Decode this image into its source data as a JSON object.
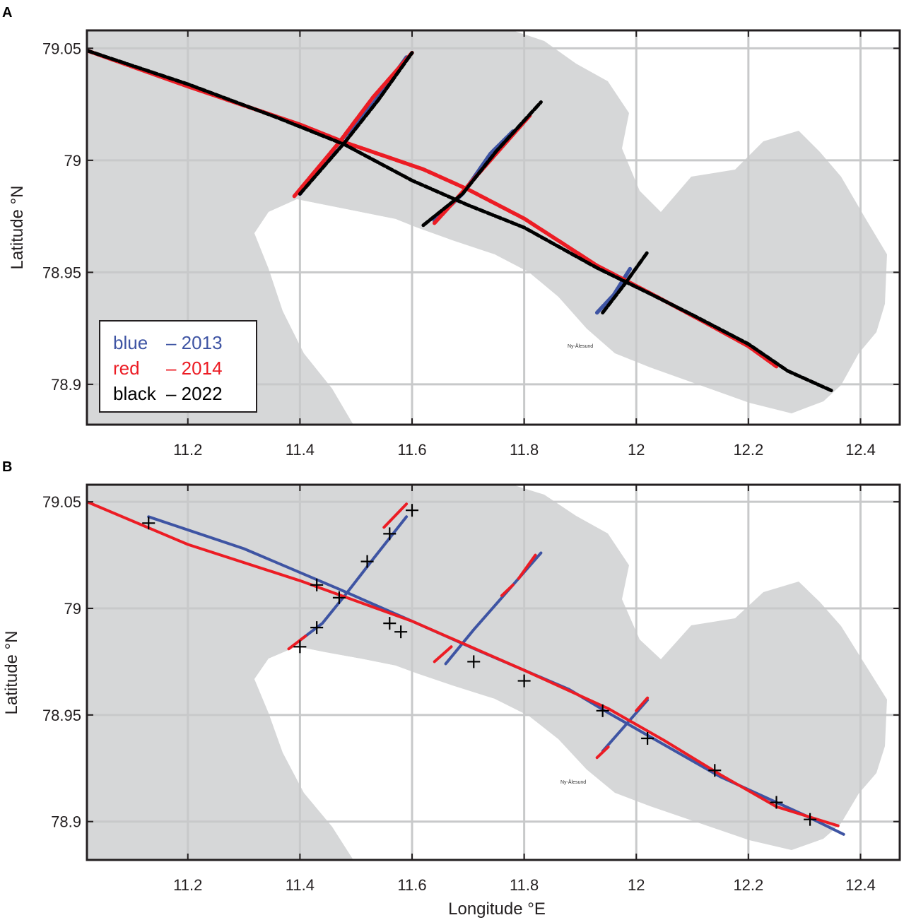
{
  "colors": {
    "blue": "#3e54a3",
    "red": "#ec1c24",
    "black": "#000000",
    "land_shading": "#d6d7d8",
    "grid": "#c8c9ca",
    "frame": "#231f20"
  },
  "place_label": "Ny-Ålesund",
  "chart_data": [
    {
      "panel": "A",
      "type": "line",
      "ylabel": "Latitude °N",
      "xlabel": "",
      "xlim": [
        11.02,
        12.47
      ],
      "ylim": [
        78.882,
        79.058
      ],
      "xticks": [
        "11.2",
        "11.4",
        "11.6",
        "11.8",
        "12",
        "12.2",
        "12.4"
      ],
      "xtick_values": [
        11.2,
        11.4,
        11.6,
        11.8,
        12.0,
        12.2,
        12.4
      ],
      "yticks": [
        "78.9",
        "78.95",
        "79",
        "79.05"
      ],
      "ytick_values": [
        78.9,
        78.95,
        79.0,
        79.05
      ],
      "grid": true,
      "legend": {
        "placement": "bottom-left",
        "entries": [
          {
            "word": "blue",
            "year": "– 2013",
            "color_key": "blue"
          },
          {
            "word": "red",
            "year": "– 2014",
            "color_key": "red"
          },
          {
            "word": "black",
            "year": "– 2022",
            "color_key": "black"
          }
        ]
      },
      "series": [
        {
          "name": "2013",
          "color_key": "blue",
          "style": "dots",
          "segments": [
            [
              [
                11.4,
                78.985
              ],
              [
                11.47,
                79.008
              ],
              [
                11.53,
                79.025
              ],
              [
                11.59,
                79.046
              ]
            ],
            [
              [
                11.64,
                78.973
              ],
              [
                11.69,
                78.985
              ],
              [
                11.74,
                79.003
              ],
              [
                11.78,
                79.013
              ]
            ],
            [
              [
                11.93,
                78.932
              ],
              [
                11.96,
                78.94
              ],
              [
                11.99,
                78.952
              ]
            ]
          ]
        },
        {
          "name": "2014",
          "color_key": "red",
          "style": "dots",
          "segments": [
            [
              [
                11.02,
                79.049
              ],
              [
                11.2,
                79.033
              ],
              [
                11.4,
                79.016
              ],
              [
                11.48,
                79.008
              ],
              [
                11.55,
                79.002
              ],
              [
                11.62,
                78.996
              ],
              [
                11.7,
                78.987
              ],
              [
                11.8,
                78.974
              ],
              [
                11.93,
                78.953
              ],
              [
                12.03,
                78.94
              ],
              [
                12.12,
                78.928
              ],
              [
                12.2,
                78.917
              ],
              [
                12.25,
                78.908
              ]
            ],
            [
              [
                11.39,
                78.984
              ],
              [
                11.47,
                79.008
              ],
              [
                11.53,
                79.028
              ],
              [
                11.6,
                79.048
              ]
            ],
            [
              [
                11.64,
                78.972
              ],
              [
                11.68,
                78.983
              ],
              [
                11.75,
                79.003
              ],
              [
                11.81,
                79.02
              ]
            ]
          ]
        },
        {
          "name": "2022",
          "color_key": "black",
          "style": "dots",
          "segments": [
            [
              [
                11.02,
                79.049
              ],
              [
                11.2,
                79.034
              ],
              [
                11.36,
                79.019
              ],
              [
                11.48,
                79.007
              ],
              [
                11.6,
                78.991
              ],
              [
                11.7,
                78.98
              ],
              [
                11.8,
                78.97
              ],
              [
                11.93,
                78.952
              ],
              [
                12.02,
                78.941
              ],
              [
                12.1,
                78.931
              ],
              [
                12.2,
                78.918
              ],
              [
                12.27,
                78.906
              ],
              [
                12.35,
                78.897
              ]
            ],
            [
              [
                11.4,
                78.985
              ],
              [
                11.48,
                79.008
              ],
              [
                11.54,
                79.027
              ],
              [
                11.6,
                79.048
              ]
            ],
            [
              [
                11.62,
                78.971
              ],
              [
                11.69,
                78.985
              ],
              [
                11.75,
                79.004
              ],
              [
                11.83,
                79.026
              ]
            ],
            [
              [
                11.94,
                78.932
              ],
              [
                11.98,
                78.945
              ],
              [
                12.02,
                78.959
              ]
            ]
          ]
        }
      ]
    },
    {
      "panel": "B",
      "type": "line",
      "ylabel": "Latitude °N",
      "xlabel": "Longitude °E",
      "xlim": [
        11.02,
        12.47
      ],
      "ylim": [
        78.882,
        79.058
      ],
      "xticks": [
        "11.2",
        "11.4",
        "11.6",
        "11.8",
        "12",
        "12.2",
        "12.4"
      ],
      "xtick_values": [
        11.2,
        11.4,
        11.6,
        11.8,
        12.0,
        12.2,
        12.4
      ],
      "yticks": [
        "78.9",
        "78.95",
        "79",
        "79.05"
      ],
      "ytick_values": [
        78.9,
        78.95,
        79.0,
        79.05
      ],
      "grid": true,
      "series": [
        {
          "name": "2013",
          "color_key": "blue",
          "style": "line",
          "segments": [
            [
              [
                11.13,
                79.043
              ],
              [
                11.3,
                79.028
              ],
              [
                11.47,
                79.009
              ],
              [
                11.6,
                78.994
              ],
              [
                11.72,
                78.98
              ],
              [
                11.8,
                78.971
              ],
              [
                11.88,
                78.962
              ],
              [
                11.95,
                78.951
              ],
              [
                12.05,
                78.936
              ],
              [
                12.15,
                78.921
              ],
              [
                12.3,
                78.903
              ],
              [
                12.37,
                78.894
              ]
            ],
            [
              [
                11.4,
                78.985
              ],
              [
                11.44,
                78.993
              ],
              [
                11.48,
                79.006
              ],
              [
                11.53,
                79.023
              ],
              [
                11.59,
                79.043
              ]
            ],
            [
              [
                11.66,
                78.974
              ],
              [
                11.71,
                78.99
              ],
              [
                11.76,
                79.005
              ],
              [
                11.83,
                79.026
              ]
            ],
            [
              [
                11.94,
                78.933
              ],
              [
                11.98,
                78.945
              ],
              [
                12.02,
                78.957
              ]
            ]
          ]
        },
        {
          "name": "2014",
          "color_key": "red",
          "style": "line",
          "segments": [
            [
              [
                11.02,
                79.05
              ],
              [
                11.2,
                79.03
              ],
              [
                11.4,
                79.013
              ],
              [
                11.6,
                78.994
              ],
              [
                11.8,
                78.971
              ],
              [
                11.95,
                78.953
              ],
              [
                12.05,
                78.938
              ],
              [
                12.15,
                78.922
              ],
              [
                12.25,
                78.907
              ],
              [
                12.36,
                78.898
              ]
            ],
            [
              [
                11.38,
                78.981
              ],
              [
                11.41,
                78.987
              ]
            ],
            [
              [
                11.55,
                79.038
              ],
              [
                11.59,
                79.049
              ]
            ],
            [
              [
                11.64,
                78.975
              ],
              [
                11.67,
                78.982
              ]
            ],
            [
              [
                11.76,
                79.006
              ],
              [
                11.78,
                79.011
              ]
            ],
            [
              [
                11.79,
                79.014
              ],
              [
                11.82,
                79.025
              ]
            ],
            [
              [
                11.93,
                78.93
              ],
              [
                11.95,
                78.935
              ]
            ],
            [
              [
                12.0,
                78.952
              ],
              [
                12.02,
                78.958
              ]
            ]
          ]
        }
      ],
      "markers": {
        "symbol": "+",
        "color_key": "black",
        "points": [
          [
            11.13,
            79.04
          ],
          [
            11.43,
            79.011
          ],
          [
            11.47,
            79.005
          ],
          [
            11.43,
            78.991
          ],
          [
            11.4,
            78.982
          ],
          [
            11.52,
            79.022
          ],
          [
            11.56,
            79.035
          ],
          [
            11.6,
            79.046
          ],
          [
            11.56,
            78.993
          ],
          [
            11.58,
            78.989
          ],
          [
            11.71,
            78.975
          ],
          [
            11.8,
            78.966
          ],
          [
            11.94,
            78.952
          ],
          [
            12.02,
            78.939
          ],
          [
            12.14,
            78.924
          ],
          [
            12.25,
            78.909
          ],
          [
            12.31,
            78.901
          ]
        ]
      }
    }
  ]
}
